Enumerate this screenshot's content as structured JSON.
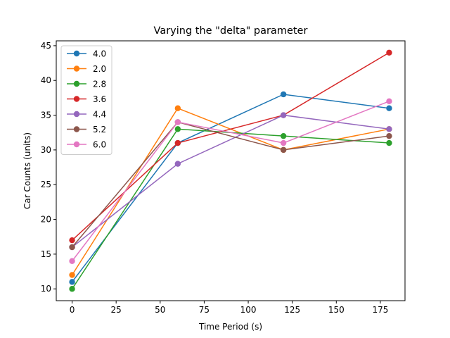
{
  "chart_data": {
    "type": "line",
    "title": "Varying the \"delta\" parameter",
    "xlabel": "Time Period (s)",
    "ylabel": "Car Counts (units)",
    "xlim": [
      -9,
      189
    ],
    "ylim": [
      8.3,
      45.7
    ],
    "xticks": [
      0,
      25,
      50,
      75,
      100,
      125,
      150,
      175
    ],
    "yticks": [
      10,
      15,
      20,
      25,
      30,
      35,
      40,
      45
    ],
    "x": [
      0,
      60,
      120,
      180
    ],
    "grid": false,
    "legend_position": "top-left",
    "series": [
      {
        "name": "4.0",
        "color": "#1f77b4",
        "values": [
          11,
          31,
          38,
          36
        ]
      },
      {
        "name": "2.0",
        "color": "#ff7f0e",
        "values": [
          12,
          36,
          30,
          33
        ]
      },
      {
        "name": "2.8",
        "color": "#2ca02c",
        "values": [
          10,
          33,
          32,
          31
        ]
      },
      {
        "name": "3.6",
        "color": "#d62728",
        "values": [
          17,
          31,
          35,
          44
        ]
      },
      {
        "name": "4.4",
        "color": "#9467bd",
        "values": [
          16,
          28,
          35,
          33
        ]
      },
      {
        "name": "5.2",
        "color": "#8c564b",
        "values": [
          16,
          34,
          30,
          32
        ]
      },
      {
        "name": "6.0",
        "color": "#e377c2",
        "values": [
          14,
          34,
          31,
          37
        ]
      }
    ]
  }
}
